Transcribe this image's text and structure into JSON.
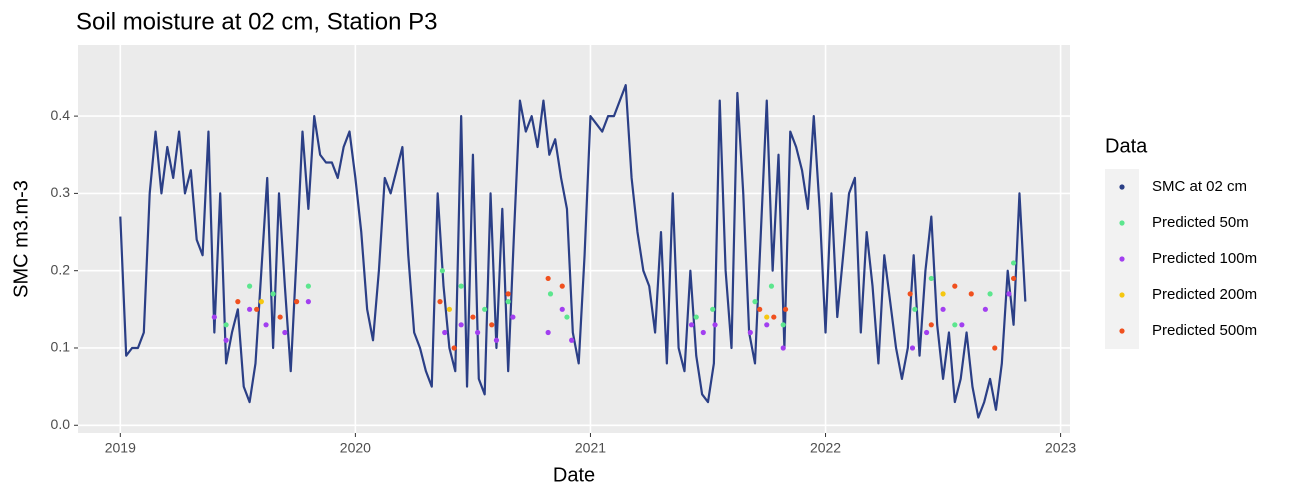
{
  "chart_data": {
    "type": "scatter",
    "title": "Soil moisture at 02 cm, Station P3",
    "x_label": "Date",
    "y_label": "SMC m3.m-3",
    "legend_title": "Data",
    "legend_position": "right",
    "grid": true,
    "xlim": [
      2018.82,
      2023.04
    ],
    "xticks": [
      2019,
      2020,
      2021,
      2022,
      2023
    ],
    "ylim": [
      -0.01,
      0.492
    ],
    "yticks": [
      {
        "value": 0,
        "label": "0.0"
      },
      0.1,
      0.2,
      0.3,
      0.4
    ],
    "series": [
      {
        "name": "SMC at 02 cm",
        "color": "#2b3f86",
        "marker": "line",
        "x": [
          2019.0,
          2019.025,
          2019.05,
          2019.075,
          2019.1,
          2019.125,
          2019.15,
          2019.175,
          2019.2,
          2019.225,
          2019.25,
          2019.275,
          2019.3,
          2019.325,
          2019.35,
          2019.375,
          2019.4,
          2019.425,
          2019.45,
          2019.475,
          2019.5,
          2019.525,
          2019.55,
          2019.575,
          2019.6,
          2019.625,
          2019.65,
          2019.675,
          2019.7,
          2019.725,
          2019.75,
          2019.775,
          2019.8,
          2019.825,
          2019.85,
          2019.875,
          2019.9,
          2019.925,
          2019.95,
          2019.975,
          2020.0,
          2020.025,
          2020.05,
          2020.075,
          2020.1,
          2020.125,
          2020.15,
          2020.175,
          2020.2,
          2020.225,
          2020.25,
          2020.275,
          2020.3,
          2020.325,
          2020.35,
          2020.375,
          2020.4,
          2020.425,
          2020.45,
          2020.475,
          2020.5,
          2020.525,
          2020.55,
          2020.575,
          2020.6,
          2020.625,
          2020.65,
          2020.675,
          2020.7,
          2020.725,
          2020.75,
          2020.775,
          2020.8,
          2020.825,
          2020.85,
          2020.875,
          2020.9,
          2020.925,
          2020.95,
          2020.975,
          2021.0,
          2021.025,
          2021.05,
          2021.075,
          2021.1,
          2021.125,
          2021.15,
          2021.175,
          2021.2,
          2021.225,
          2021.25,
          2021.275,
          2021.3,
          2021.325,
          2021.35,
          2021.375,
          2021.4,
          2021.425,
          2021.45,
          2021.475,
          2021.5,
          2021.525,
          2021.55,
          2021.575,
          2021.6,
          2021.625,
          2021.65,
          2021.675,
          2021.7,
          2021.725,
          2021.75,
          2021.775,
          2021.8,
          2021.825,
          2021.85,
          2021.875,
          2021.9,
          2021.925,
          2021.95,
          2021.975,
          2022.0,
          2022.025,
          2022.05,
          2022.075,
          2022.1,
          2022.125,
          2022.15,
          2022.175,
          2022.2,
          2022.225,
          2022.25,
          2022.275,
          2022.3,
          2022.325,
          2022.35,
          2022.375,
          2022.4,
          2022.425,
          2022.45,
          2022.475,
          2022.5,
          2022.525,
          2022.55,
          2022.575,
          2022.6,
          2022.625,
          2022.65,
          2022.675,
          2022.7,
          2022.725,
          2022.75,
          2022.775,
          2022.8,
          2022.825,
          2022.85
        ],
        "values": [
          0.27,
          0.09,
          0.1,
          0.1,
          0.12,
          0.3,
          0.38,
          0.3,
          0.36,
          0.32,
          0.38,
          0.3,
          0.33,
          0.24,
          0.22,
          0.38,
          0.12,
          0.3,
          0.08,
          0.12,
          0.15,
          0.05,
          0.03,
          0.08,
          0.2,
          0.32,
          0.1,
          0.3,
          0.18,
          0.07,
          0.22,
          0.38,
          0.28,
          0.4,
          0.35,
          0.34,
          0.34,
          0.32,
          0.36,
          0.38,
          0.32,
          0.25,
          0.15,
          0.11,
          0.2,
          0.32,
          0.3,
          0.33,
          0.36,
          0.22,
          0.12,
          0.1,
          0.07,
          0.05,
          0.3,
          0.18,
          0.1,
          0.07,
          0.4,
          0.05,
          0.35,
          0.06,
          0.04,
          0.3,
          0.1,
          0.28,
          0.07,
          0.25,
          0.42,
          0.38,
          0.4,
          0.36,
          0.42,
          0.35,
          0.37,
          0.32,
          0.28,
          0.12,
          0.08,
          0.22,
          0.4,
          0.39,
          0.38,
          0.4,
          0.4,
          0.42,
          0.44,
          0.32,
          0.25,
          0.2,
          0.18,
          0.12,
          0.25,
          0.08,
          0.3,
          0.1,
          0.07,
          0.2,
          0.09,
          0.04,
          0.03,
          0.08,
          0.42,
          0.2,
          0.1,
          0.43,
          0.3,
          0.12,
          0.08,
          0.25,
          0.42,
          0.2,
          0.35,
          0.1,
          0.38,
          0.36,
          0.33,
          0.28,
          0.4,
          0.28,
          0.12,
          0.3,
          0.14,
          0.22,
          0.3,
          0.32,
          0.12,
          0.25,
          0.18,
          0.08,
          0.22,
          0.16,
          0.1,
          0.06,
          0.1,
          0.22,
          0.09,
          0.2,
          0.27,
          0.13,
          0.06,
          0.12,
          0.03,
          0.06,
          0.12,
          0.05,
          0.01,
          0.03,
          0.06,
          0.02,
          0.08,
          0.2,
          0.13,
          0.3,
          0.16
        ]
      },
      {
        "name": "Predicted 50m",
        "color": "#5ce68e",
        "marker": "point",
        "x": [
          2019.45,
          2019.55,
          2019.65,
          2019.8,
          2020.37,
          2020.45,
          2020.55,
          2020.65,
          2020.83,
          2020.9,
          2021.45,
          2021.52,
          2021.7,
          2021.77,
          2021.82,
          2022.38,
          2022.45,
          2022.55,
          2022.7,
          2022.8
        ],
        "values": [
          0.13,
          0.18,
          0.17,
          0.18,
          0.2,
          0.18,
          0.15,
          0.16,
          0.17,
          0.14,
          0.14,
          0.15,
          0.16,
          0.18,
          0.13,
          0.15,
          0.19,
          0.13,
          0.17,
          0.21
        ]
      },
      {
        "name": "Predicted 100m",
        "color": "#a23ff0",
        "marker": "point",
        "x": [
          2019.4,
          2019.45,
          2019.55,
          2019.62,
          2019.7,
          2019.8,
          2020.38,
          2020.45,
          2020.52,
          2020.6,
          2020.67,
          2020.82,
          2020.88,
          2020.92,
          2021.43,
          2021.48,
          2021.53,
          2021.68,
          2021.75,
          2021.82,
          2022.37,
          2022.43,
          2022.5,
          2022.58,
          2022.68,
          2022.78
        ],
        "values": [
          0.14,
          0.11,
          0.15,
          0.13,
          0.12,
          0.16,
          0.12,
          0.13,
          0.12,
          0.11,
          0.14,
          0.12,
          0.15,
          0.11,
          0.13,
          0.12,
          0.13,
          0.12,
          0.13,
          0.1,
          0.1,
          0.12,
          0.15,
          0.13,
          0.15,
          0.17
        ]
      },
      {
        "name": "Predicted 200m",
        "color": "#f5c710",
        "marker": "point",
        "x": [
          2019.6,
          2020.4,
          2021.75,
          2022.5
        ],
        "values": [
          0.16,
          0.15,
          0.14,
          0.17
        ]
      },
      {
        "name": "Predicted 500m",
        "color": "#f0501e",
        "marker": "point",
        "x": [
          2019.5,
          2019.58,
          2019.68,
          2019.75,
          2020.36,
          2020.42,
          2020.5,
          2020.58,
          2020.65,
          2020.82,
          2020.88,
          2021.72,
          2021.78,
          2021.83,
          2022.36,
          2022.45,
          2022.55,
          2022.62,
          2022.72,
          2022.8
        ],
        "values": [
          0.16,
          0.15,
          0.14,
          0.16,
          0.16,
          0.1,
          0.14,
          0.13,
          0.17,
          0.19,
          0.18,
          0.15,
          0.14,
          0.15,
          0.17,
          0.13,
          0.18,
          0.17,
          0.1,
          0.19
        ]
      }
    ]
  }
}
